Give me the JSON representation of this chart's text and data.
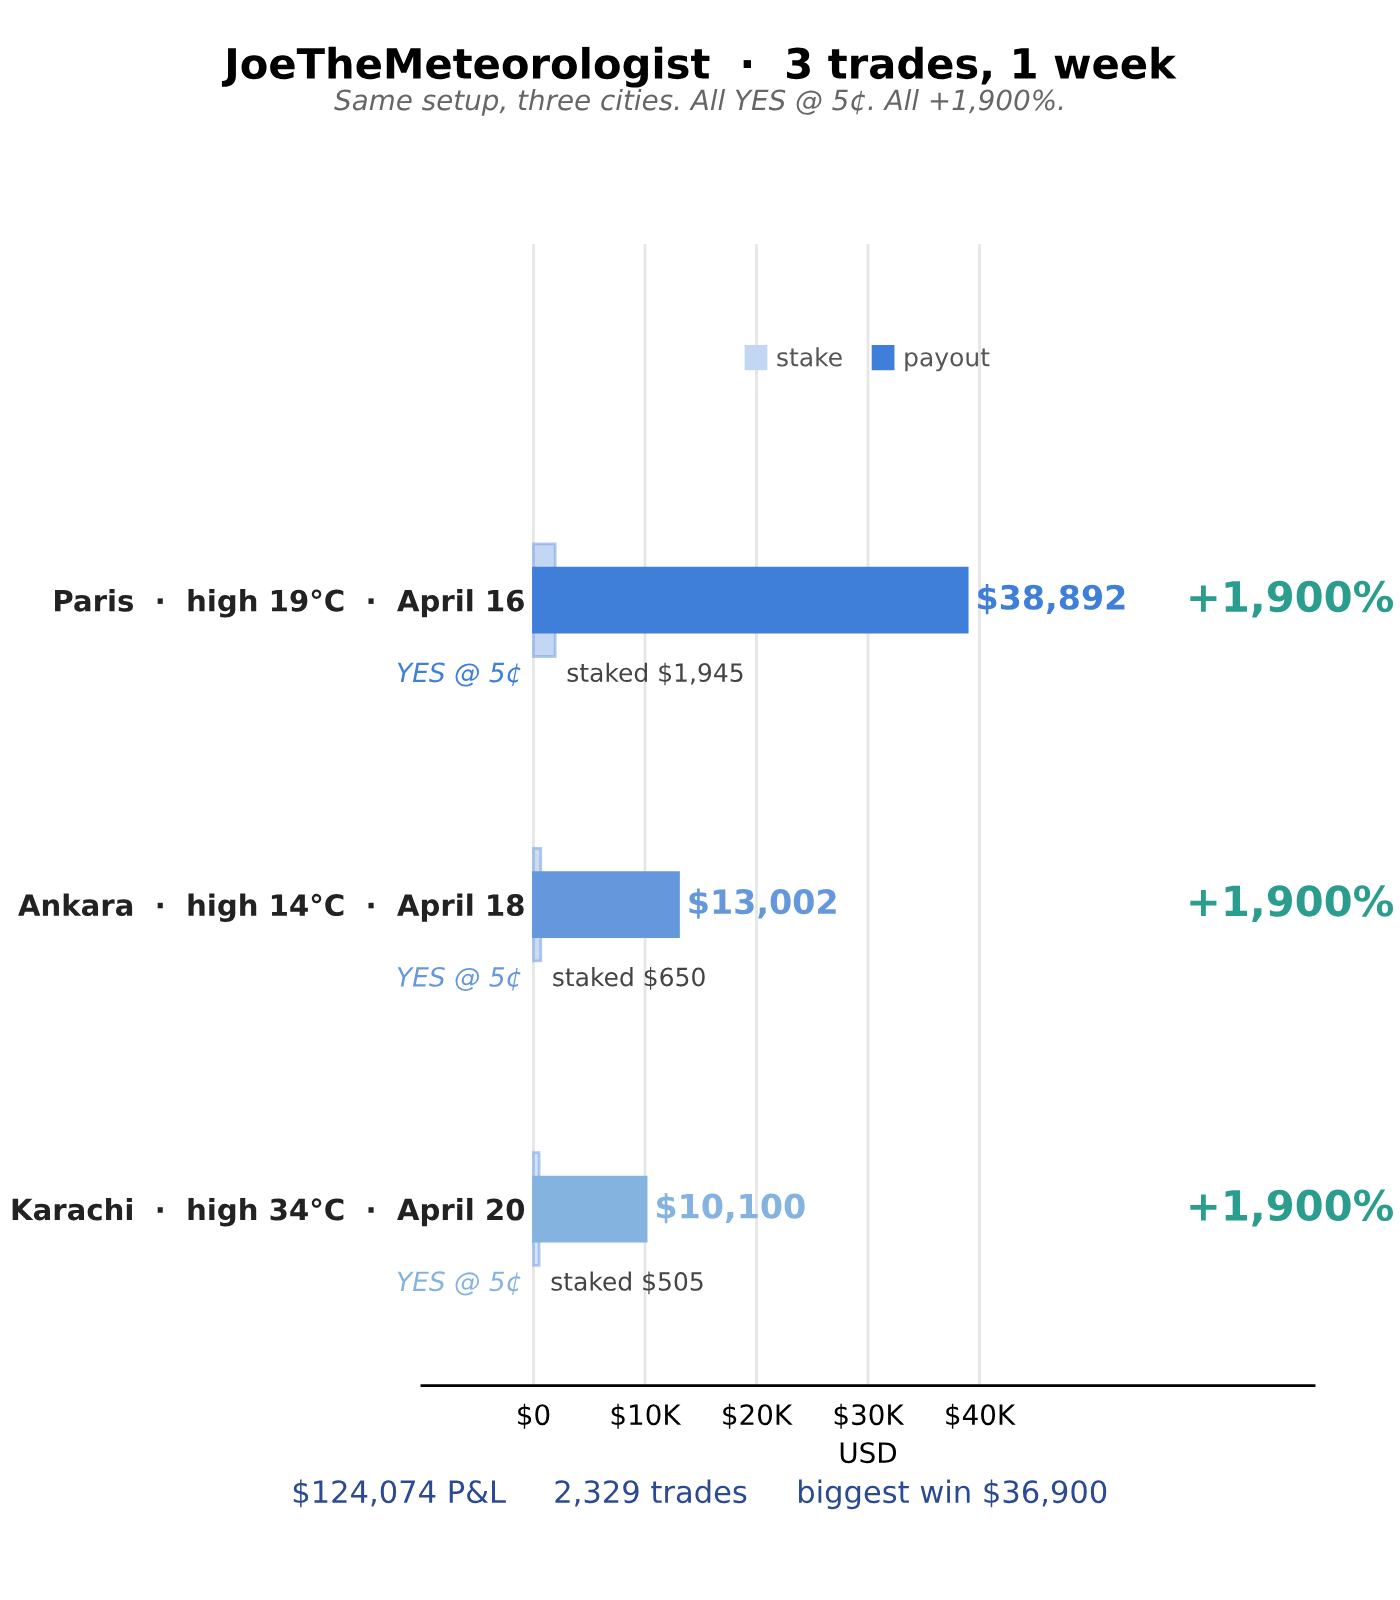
{
  "chart_data": {
    "type": "bar",
    "orientation": "horizontal",
    "title": "JoeTheMeteorologist  ·  3 trades, 1 week",
    "subtitle": "Same setup, three cities. All YES @ 5¢. All +1,900%.",
    "xlabel": "USD",
    "categories": [
      "Paris  ·  high 19°C  ·  April 16",
      "Ankara  ·  high 14°C  ·  April 18",
      "Karachi  ·  high 34°C  ·  April 20"
    ],
    "series": [
      {
        "name": "stake",
        "color": "#c3d6f3",
        "colors": [
          "#c3d6f3",
          "#cbdcf1",
          "#d3e3f4"
        ],
        "values": [
          1945,
          650,
          505
        ],
        "value_labels": [
          "staked $1,945",
          "staked $650",
          "staked $505"
        ]
      },
      {
        "name": "payout",
        "color": "#3f7fd9",
        "colors": [
          "#3f7fd9",
          "#6497db",
          "#85b3df"
        ],
        "values": [
          38892,
          13002,
          10100
        ],
        "value_labels": [
          "$38,892",
          "$13,002",
          "$10,100"
        ]
      }
    ],
    "xlim": [
      -10000,
      70000
    ],
    "xticks": [
      {
        "value": 0,
        "label": "$0"
      },
      {
        "value": 10000,
        "label": "$10K"
      },
      {
        "value": 20000,
        "label": "$20K"
      },
      {
        "value": 30000,
        "label": "$30K"
      },
      {
        "value": 40000,
        "label": "$40K"
      }
    ],
    "grid": "x",
    "legend": "top",
    "annotations": [
      "YES @ 5¢",
      "YES @ 5¢",
      "YES @ 5¢",
      "+1,900%",
      "+1,900%",
      "+1,900%",
      "$124,074 P&L",
      "2,329 trades",
      "biggest win $36,900"
    ]
  }
}
